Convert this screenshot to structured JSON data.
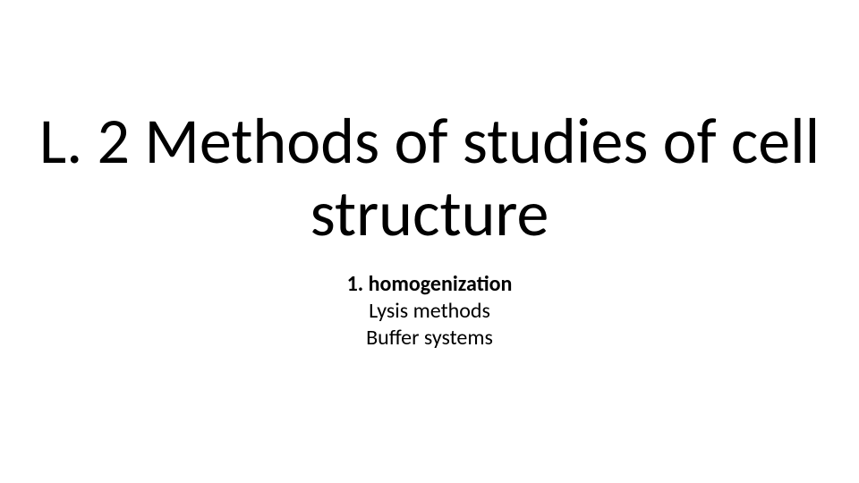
{
  "slide": {
    "background_color": "#ffffff",
    "text_color": "#000000",
    "title": {
      "text": "L. 2 Methods of studies of cell structure",
      "font_family": "Calibri Light",
      "font_size_pt": 54,
      "font_weight": 400,
      "align": "center"
    },
    "subtitle": {
      "lines": [
        {
          "text": "1. homogenization",
          "bold": true
        },
        {
          "text": "Lysis methods",
          "bold": false
        },
        {
          "text": "Buffer systems",
          "bold": false
        }
      ],
      "font_family": "Calibri",
      "font_size_pt": 18,
      "align": "center"
    }
  }
}
